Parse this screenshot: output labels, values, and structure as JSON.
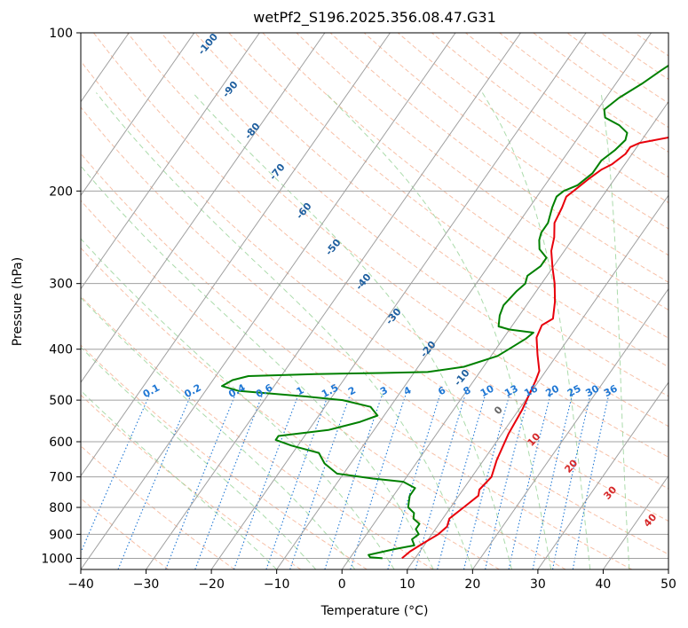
{
  "chart_data": {
    "type": "line",
    "title": "wetPf2_S196.2025.356.08.47.G31",
    "xlabel": "Temperature (°C)",
    "ylabel": "Pressure (hPa)",
    "xlim": [
      -40,
      50
    ],
    "ylim": [
      1050,
      100
    ],
    "y_scale": "log",
    "grid": true,
    "x_ticks": [
      "−40",
      "−30",
      "−20",
      "−10",
      "0",
      "10",
      "20",
      "30",
      "40",
      "50"
    ],
    "y_ticks": [
      "100",
      "200",
      "300",
      "400",
      "500",
      "600",
      "700",
      "800",
      "900",
      "1000"
    ],
    "series": [
      {
        "color": "#e8000b",
        "points": [
          [
            8,
            1000
          ],
          [
            8.5,
            970
          ],
          [
            9.5,
            940
          ],
          [
            11,
            900
          ],
          [
            11.5,
            870
          ],
          [
            11,
            840
          ],
          [
            12,
            800
          ],
          [
            13,
            760
          ],
          [
            12.5,
            740
          ],
          [
            13,
            700
          ],
          [
            12,
            650
          ],
          [
            11,
            580
          ],
          [
            10.5,
            520
          ],
          [
            10,
            490
          ],
          [
            9.5,
            460
          ],
          [
            9,
            440
          ],
          [
            7,
            410
          ],
          [
            5,
            380
          ],
          [
            4.5,
            360
          ],
          [
            5.5,
            350
          ],
          [
            4,
            325
          ],
          [
            2,
            300
          ],
          [
            0,
            280
          ],
          [
            -2,
            260
          ],
          [
            -3,
            245
          ],
          [
            -4.5,
            230
          ],
          [
            -5,
            215
          ],
          [
            -5.5,
            205
          ],
          [
            -5,
            200
          ],
          [
            -4,
            190
          ],
          [
            -3,
            182
          ],
          [
            -2,
            178
          ],
          [
            -1,
            170
          ],
          [
            -1,
            165
          ],
          [
            0,
            162
          ],
          [
            4,
            158
          ],
          [
            9,
            155
          ],
          [
            12,
            150
          ],
          [
            13.5,
            145
          ],
          [
            14,
            138
          ],
          [
            15,
            130
          ],
          [
            16,
            125
          ],
          [
            17,
            115
          ],
          [
            18.5,
            105
          ],
          [
            19.5,
            100
          ]
        ]
      },
      {
        "color": "#008000",
        "points": [
          [
            5,
            1000
          ],
          [
            3,
            995
          ],
          [
            2.5,
            985
          ],
          [
            6,
            960
          ],
          [
            8.5,
            945
          ],
          [
            7.5,
            920
          ],
          [
            8,
            900
          ],
          [
            7,
            880
          ],
          [
            7,
            860
          ],
          [
            5.5,
            840
          ],
          [
            5,
            820
          ],
          [
            3.5,
            800
          ],
          [
            3,
            780
          ],
          [
            2.5,
            760
          ],
          [
            2.5,
            735
          ],
          [
            0,
            715
          ],
          [
            -5,
            705
          ],
          [
            -11,
            690
          ],
          [
            -14,
            660
          ],
          [
            -16,
            630
          ],
          [
            -21,
            610
          ],
          [
            -24,
            595
          ],
          [
            -24,
            585
          ],
          [
            -17,
            570
          ],
          [
            -13,
            550
          ],
          [
            -11,
            535
          ],
          [
            -13,
            515
          ],
          [
            -18,
            500
          ],
          [
            -24,
            492
          ],
          [
            -35,
            480
          ],
          [
            -38,
            470
          ],
          [
            -37,
            458
          ],
          [
            -35,
            450
          ],
          [
            -25,
            446
          ],
          [
            -15,
            444
          ],
          [
            -8,
            442
          ],
          [
            -3,
            432
          ],
          [
            1,
            412
          ],
          [
            2,
            400
          ],
          [
            3.5,
            382
          ],
          [
            4,
            372
          ],
          [
            0,
            367
          ],
          [
            -2,
            362
          ],
          [
            -3,
            345
          ],
          [
            -3.5,
            330
          ],
          [
            -3,
            310
          ],
          [
            -2.5,
            300
          ],
          [
            -3,
            290
          ],
          [
            -2,
            278
          ],
          [
            -2,
            268
          ],
          [
            -4,
            258
          ],
          [
            -5,
            248
          ],
          [
            -5.5,
            240
          ],
          [
            -5.5,
            230
          ],
          [
            -6.5,
            215
          ],
          [
            -7,
            205
          ],
          [
            -6.5,
            200
          ],
          [
            -5,
            195
          ],
          [
            -4,
            185
          ],
          [
            -4,
            175
          ],
          [
            -3,
            167
          ],
          [
            -2.5,
            160
          ],
          [
            -3,
            155
          ],
          [
            -5,
            150
          ],
          [
            -8,
            145
          ],
          [
            -9,
            140
          ],
          [
            -8,
            133
          ],
          [
            -6,
            125
          ],
          [
            -4.5,
            118
          ],
          [
            -3,
            112
          ],
          [
            -0.5,
            105
          ],
          [
            0.5,
            100
          ]
        ]
      }
    ],
    "mixing_ratio_labels": [
      "0.1",
      "0.2",
      "0.4",
      "0.6",
      "1",
      "1.5",
      "2",
      "3",
      "4",
      "6",
      "8",
      "10",
      "13",
      "16",
      "20",
      "25",
      "30",
      "36"
    ],
    "dry_adiabat_labels": [
      "-100",
      "-90",
      "-80",
      "-70",
      "-60",
      "-50",
      "-40",
      "-30",
      "-20",
      "-10"
    ],
    "moist_labels": [
      "0",
      "10",
      "20",
      "30",
      "40"
    ],
    "colors": {
      "temperature": "#e8000b",
      "dewpoint": "#008000",
      "isotherm": "#a0a0a0",
      "dry_adiabat": "#f4a582",
      "moist_adiabat": "#8fcf8f",
      "mixing_ratio": "#1f77d4",
      "dry_label": "#1f5f9f",
      "moist_label": "#d62728"
    }
  }
}
